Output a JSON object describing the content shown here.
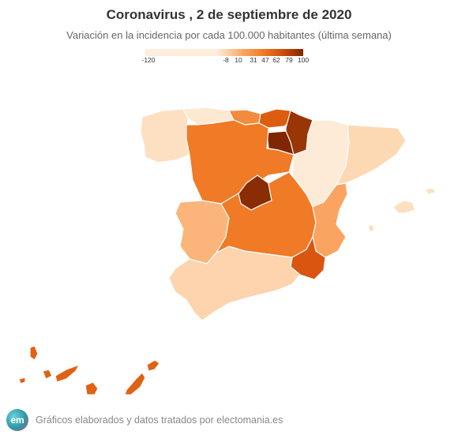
{
  "title": "Coronavirus , 2 de septiembre de 2020",
  "subtitle": "Variación en la incidencia por cada 100.000 habitantes (última semana)",
  "legend": {
    "ticks": [
      "-120",
      "-8",
      "10",
      "31",
      "47",
      "62",
      "79",
      "100"
    ],
    "colors": {
      "min": "#fdeedd",
      "mid": "#f07a25",
      "max": "#7f2704"
    }
  },
  "footer": {
    "logo_text": "em",
    "text": "Gráficos elaborados y datos tratados por electomania.es"
  }
}
